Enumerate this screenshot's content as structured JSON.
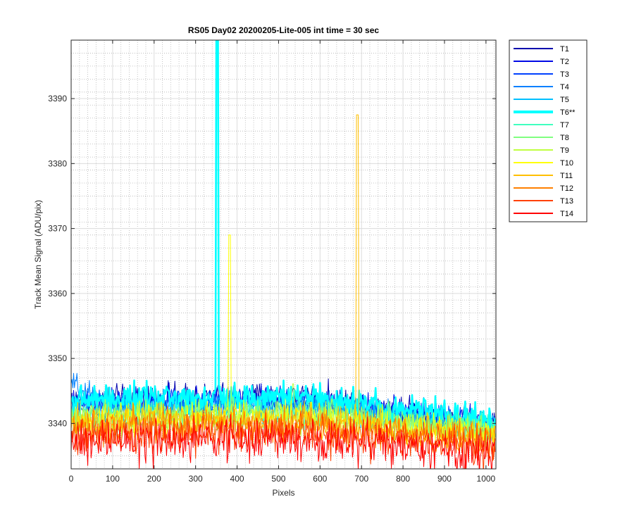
{
  "chart_data": {
    "type": "line",
    "title": "RS05 Day02 20200205-Lite-005 int time = 30 sec",
    "xlabel": "Pixels",
    "ylabel": "Track Mean Signal (ADU/pix)",
    "xlim": [
      0,
      1024
    ],
    "ylim": [
      3333,
      3399
    ],
    "xticks": [
      0,
      100,
      200,
      300,
      400,
      500,
      600,
      700,
      800,
      900,
      1000
    ],
    "yticks": [
      3340,
      3350,
      3360,
      3370,
      3380,
      3390
    ],
    "grid": true,
    "minor_grid": true,
    "legend_position": "outside-top-right",
    "series": [
      {
        "name": "T1",
        "color": "#0000ad",
        "base": 3343.5,
        "noise": 1.0,
        "end": 3340.0
      },
      {
        "name": "T2",
        "color": "#0008e6",
        "base": 3343.0,
        "noise": 1.0,
        "end": 3339.8
      },
      {
        "name": "T3",
        "color": "#0040ff",
        "base": 3342.6,
        "noise": 1.0,
        "end": 3339.6
      },
      {
        "name": "T4",
        "color": "#0080ff",
        "base": 3342.3,
        "noise": 1.0,
        "end": 3339.4,
        "start": 3346.0
      },
      {
        "name": "T5",
        "color": "#00bfff",
        "base": 3342.0,
        "noise": 1.0,
        "end": 3339.2
      },
      {
        "name": "T6**",
        "color": "#00ffff",
        "base": 3343.5,
        "noise": 1.0,
        "end": 3340.5,
        "spike_x": 352,
        "spike_y": 3399,
        "bold": true
      },
      {
        "name": "T7",
        "color": "#40ffbf",
        "base": 3341.0,
        "noise": 1.0,
        "end": 3338.8
      },
      {
        "name": "T8",
        "color": "#80ff80",
        "base": 3340.8,
        "noise": 1.0,
        "end": 3338.6
      },
      {
        "name": "T9",
        "color": "#bfff40",
        "base": 3340.6,
        "noise": 1.1,
        "end": 3338.4,
        "bump_x": 535,
        "bump_y": 3347
      },
      {
        "name": "T10",
        "color": "#ffff00",
        "base": 3340.2,
        "noise": 1.1,
        "end": 3338.2,
        "spike_x": 382,
        "spike_y": 3369
      },
      {
        "name": "T11",
        "color": "#ffbf00",
        "base": 3339.8,
        "noise": 1.2,
        "end": 3337.8,
        "spike_x": 690,
        "spike_y": 3387.5
      },
      {
        "name": "T12",
        "color": "#ff8000",
        "base": 3339.0,
        "noise": 1.3,
        "end": 3337.0
      },
      {
        "name": "T13",
        "color": "#ff4000",
        "base": 3338.0,
        "noise": 1.4,
        "end": 3336.0
      },
      {
        "name": "T14",
        "color": "#ff0000",
        "base": 3337.0,
        "noise": 1.5,
        "end": 3335.0
      }
    ]
  }
}
